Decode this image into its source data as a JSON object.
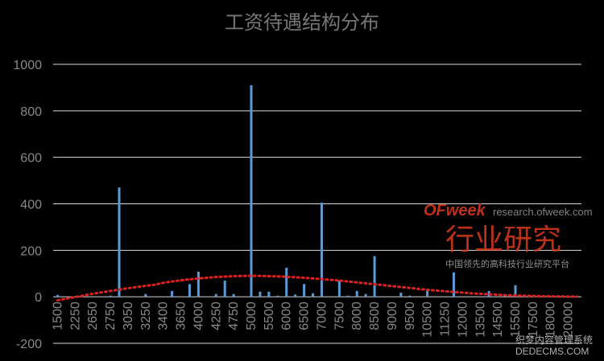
{
  "chart_data": {
    "type": "bar",
    "title": "工资待遇结构分布",
    "categories": [
      "1500",
      null,
      "2250",
      null,
      "2650",
      null,
      "2750",
      null,
      "3050",
      null,
      "3250",
      null,
      "3400",
      null,
      "3650",
      null,
      "4000",
      null,
      "4250",
      null,
      "4750",
      null,
      "5000",
      null,
      "5500",
      null,
      "6000",
      null,
      "6500",
      null,
      "7000",
      null,
      "7500",
      null,
      "8000",
      null,
      "8500",
      null,
      "9000",
      null,
      "9500",
      null,
      "10500",
      null,
      "11250",
      null,
      "12000",
      null,
      "13500",
      null,
      "14500",
      null,
      "15500",
      null,
      "17500",
      null,
      "18000",
      null,
      "20000",
      null
    ],
    "series": [
      {
        "color": "#5b9bd5",
        "values": [
          8,
          0,
          0,
          0,
          0,
          0,
          5,
          470,
          0,
          0,
          12,
          0,
          0,
          25,
          0,
          55,
          108,
          0,
          12,
          70,
          12,
          0,
          910,
          22,
          22,
          5,
          125,
          10,
          55,
          15,
          405,
          0,
          70,
          5,
          25,
          12,
          175,
          0,
          0,
          18,
          5,
          0,
          35,
          0,
          0,
          105,
          0,
          0,
          0,
          25,
          0,
          0,
          50,
          0,
          0,
          0,
          0,
          0,
          0,
          0
        ]
      },
      {
        "type": "trendline",
        "color": "#e02020",
        "values": [
          -15,
          -8,
          -1,
          6,
          13,
          19,
          25,
          31,
          37,
          42,
          47,
          52,
          60,
          66,
          71,
          75,
          79,
          82,
          85,
          87,
          89,
          90,
          90,
          90,
          89,
          88,
          86,
          84,
          82,
          79,
          76,
          73,
          70,
          66,
          62,
          58,
          54,
          50,
          46,
          42,
          38,
          34,
          30,
          27,
          24,
          21,
          18,
          15,
          13,
          11,
          9,
          7,
          6,
          5,
          4,
          3,
          2,
          2,
          1,
          1
        ]
      }
    ],
    "ylim": [
      -200,
      1000
    ],
    "yticks": [
      -200,
      0,
      200,
      400,
      600,
      800,
      1000
    ],
    "grid": true,
    "watermark": {
      "brand": "OFweek",
      "url": "research.ofweek.com",
      "heading": "行业研究",
      "tagline": "中国领先的高科技行业研究平台",
      "footer1": "织梦内容管理系统",
      "footer2": "DEDECMS.COM"
    }
  }
}
